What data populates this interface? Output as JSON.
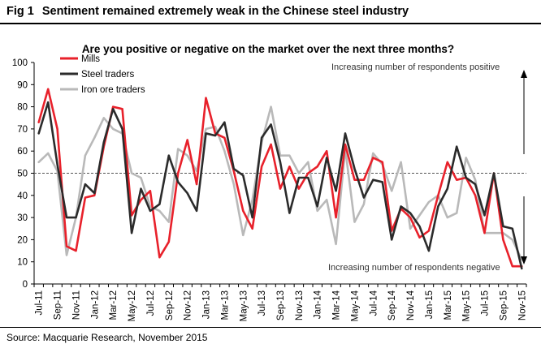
{
  "header": {
    "fig_label": "Fig 1",
    "title": "Sentiment remained extremely weak in the Chinese steel industry"
  },
  "footer": {
    "source": "Source: Macquarie Research, November 2015"
  },
  "colors": {
    "mills": "#e8212b",
    "steel_traders": "#2b2b2b",
    "iron_ore_traders": "#b9b9b9",
    "threshold": "#555555"
  },
  "chart_data": {
    "type": "line",
    "title": "Are you positive or negative on the market over the next three months?",
    "xlabel": "",
    "ylabel": "",
    "ylim": [
      0,
      100
    ],
    "yticks": [
      0,
      10,
      20,
      30,
      40,
      50,
      60,
      70,
      80,
      90,
      100
    ],
    "x": [
      "Jul-11",
      "Aug-11",
      "Sep-11",
      "Oct-11",
      "Nov-11",
      "Dec-11",
      "Jan-12",
      "Feb-12",
      "Mar-12",
      "Apr-12",
      "May-12",
      "Jun-12",
      "Jul-12",
      "Aug-12",
      "Sep-12",
      "Oct-12",
      "Nov-12",
      "Dec-12",
      "Jan-13",
      "Feb-13",
      "Mar-13",
      "Apr-13",
      "May-13",
      "Jun-13",
      "Jul-13",
      "Aug-13",
      "Sep-13",
      "Oct-13",
      "Nov-13",
      "Dec-13",
      "Jan-14",
      "Feb-14",
      "Mar-14",
      "Apr-14",
      "May-14",
      "Jun-14",
      "Jul-14",
      "Aug-14",
      "Sep-14",
      "Oct-14",
      "Nov-14",
      "Dec-14",
      "Jan-15",
      "Feb-15",
      "Mar-15",
      "Apr-15",
      "May-15",
      "Jun-15",
      "Jul-15",
      "Aug-15",
      "Sep-15",
      "Oct-15",
      "Nov-15"
    ],
    "xtick_labels": [
      "Jul-11",
      "Sep-11",
      "Nov-11",
      "Jan-12",
      "Mar-12",
      "May-12",
      "Jul-12",
      "Sep-12",
      "Nov-12",
      "Jan-13",
      "Mar-13",
      "May-13",
      "Jul-13",
      "Sep-13",
      "Nov-13",
      "Jan-14",
      "Mar-14",
      "May-14",
      "Jul-14",
      "Sep-14",
      "Nov-14",
      "Jan-15",
      "Mar-15",
      "May-15",
      "Jul-15",
      "Sep-15",
      "Nov-15"
    ],
    "series": [
      {
        "name": "Mills",
        "color": "#e8212b",
        "values": [
          73,
          88,
          70,
          17,
          15,
          39,
          40,
          62,
          80,
          79,
          31,
          38,
          42,
          12,
          19,
          50,
          65,
          45,
          84,
          68,
          66,
          51,
          33,
          25,
          53,
          63,
          43,
          53,
          43,
          50,
          53,
          60,
          30,
          63,
          47,
          47,
          57,
          55,
          24,
          34,
          30,
          21,
          24,
          40,
          55,
          47,
          48,
          40,
          23,
          50,
          20,
          8,
          8
        ]
      },
      {
        "name": "Steel traders",
        "color": "#2b2b2b",
        "values": [
          68,
          82,
          54,
          30,
          30,
          45,
          41,
          64,
          79,
          70,
          23,
          43,
          33,
          36,
          58,
          46,
          41,
          33,
          68,
          67,
          73,
          52,
          49,
          30,
          66,
          72,
          55,
          32,
          48,
          48,
          35,
          57,
          42,
          68,
          52,
          39,
          47,
          46,
          20,
          35,
          32,
          26,
          15,
          35,
          43,
          62,
          48,
          45,
          31,
          50,
          26,
          25,
          7
        ]
      },
      {
        "name": "Iron ore traders",
        "color": "#b9b9b9",
        "values": [
          55,
          59,
          51,
          13,
          30,
          58,
          66,
          75,
          70,
          68,
          50,
          48,
          35,
          33,
          28,
          61,
          58,
          51,
          70,
          71,
          60,
          45,
          22,
          38,
          64,
          80,
          58,
          58,
          50,
          55,
          33,
          38,
          18,
          61,
          28,
          36,
          59,
          54,
          42,
          55,
          25,
          31,
          37,
          40,
          30,
          32,
          57,
          47,
          23,
          23,
          23,
          20,
          11
        ]
      }
    ],
    "threshold": 50,
    "legend_placement": "top-left",
    "annotations": {
      "positive": "Increasing number of respondents positive",
      "negative": "Increasing number of respondents negative"
    },
    "grid": false
  }
}
